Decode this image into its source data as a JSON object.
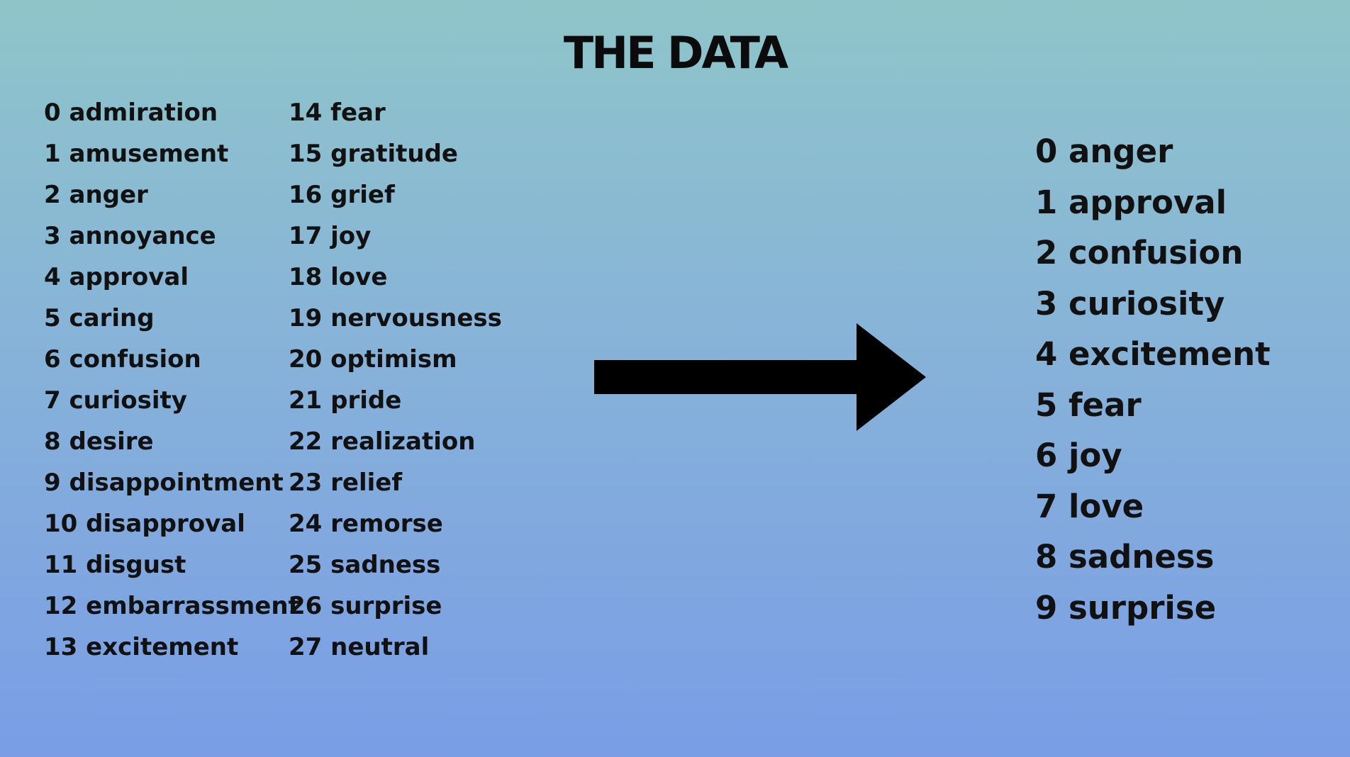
{
  "title": "THE DATA",
  "icons": {
    "arrow": "arrow-right-icon"
  },
  "colors": {
    "background_top": "#8fc5c9",
    "background_bottom": "#7a9de6",
    "text": "#111111"
  },
  "original_labels": [
    "0 admiration",
    "1 amusement",
    "2 anger",
    "3 annoyance",
    "4 approval",
    "5 caring",
    "6 confusion",
    "7 curiosity",
    "8 desire",
    "9 disappointment",
    "10 disapproval",
    "11 disgust",
    "12 embarrassment",
    "13 excitement",
    "14 fear",
    "15 gratitude",
    "16 grief",
    "17 joy",
    "18 love",
    "19 nervousness",
    "20 optimism",
    "21 pride",
    "22 realization",
    "23 relief",
    "24 remorse",
    "25 sadness",
    "26 surprise",
    "27 neutral"
  ],
  "reduced_labels": [
    "0 anger",
    "1 approval",
    "2 confusion",
    "3 curiosity",
    "4 excitement",
    "5 fear",
    "6 joy",
    "7 love",
    "8 sadness",
    "9 surprise"
  ]
}
